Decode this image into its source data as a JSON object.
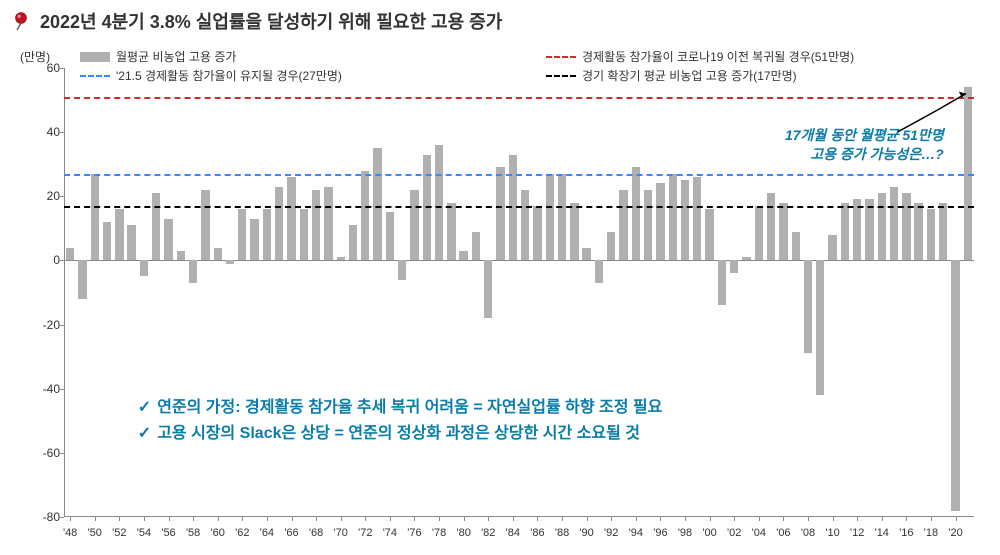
{
  "title": {
    "text": "2022년 4분기 3.8% 실업률을 달성하기 위해 필요한 고용 증가"
  },
  "chart": {
    "type": "bar",
    "y_unit_label": "(만명)",
    "title_fontsize": 18,
    "label_fontsize": 12,
    "background_color": "#ffffff",
    "bar_color": "#b0b0b0",
    "axis_color": "#888888",
    "ylim": [
      -80,
      60
    ],
    "ytick_step": 20,
    "yticks": [
      -80,
      -60,
      -40,
      -20,
      0,
      20,
      40,
      60
    ],
    "xtick_every": 2,
    "years": [
      1948,
      1949,
      1950,
      1951,
      1952,
      1953,
      1954,
      1955,
      1956,
      1957,
      1958,
      1959,
      1960,
      1961,
      1962,
      1963,
      1964,
      1965,
      1966,
      1967,
      1968,
      1969,
      1970,
      1971,
      1972,
      1973,
      1974,
      1975,
      1976,
      1977,
      1978,
      1979,
      1980,
      1981,
      1982,
      1983,
      1984,
      1985,
      1986,
      1987,
      1988,
      1989,
      1990,
      1991,
      1992,
      1993,
      1994,
      1995,
      1996,
      1997,
      1998,
      1999,
      2000,
      2001,
      2002,
      2003,
      2004,
      2005,
      2006,
      2007,
      2008,
      2009,
      2010,
      2011,
      2012,
      2013,
      2014,
      2015,
      2016,
      2017,
      2018,
      2019,
      2020,
      2021
    ],
    "values": [
      4,
      -12,
      27,
      12,
      16,
      11,
      -5,
      21,
      13,
      3,
      -7,
      22,
      4,
      -1,
      16,
      13,
      16,
      23,
      26,
      16,
      22,
      23,
      1,
      11,
      28,
      35,
      15,
      -6,
      22,
      33,
      36,
      18,
      3,
      9,
      -18,
      29,
      33,
      22,
      17,
      27,
      27,
      18,
      4,
      -7,
      9,
      22,
      29,
      22,
      24,
      27,
      25,
      26,
      16,
      -14,
      -4,
      1,
      17,
      21,
      18,
      9,
      -29,
      -42,
      8,
      18,
      19,
      19,
      21,
      23,
      21,
      18,
      16,
      18,
      -78,
      54
    ],
    "bar_width": 0.68,
    "reference_lines": [
      {
        "label": "경제활동 참가율이 코로나19 이전 복귀될 경우(51만명)",
        "value": 51,
        "color": "#d62828",
        "dash": "dashed"
      },
      {
        "label": "'21.5 경제활동 참가율이 유지될 경우(27만명)",
        "value": 27,
        "color": "#3a86ff",
        "dash": "dashed"
      },
      {
        "label": "경기 확장기 평균 비농업 고용 증가(17만명)",
        "value": 17,
        "color": "#000000",
        "dash": "dashed"
      }
    ],
    "legend_bar_label": "월평균 비농업 고용 증가",
    "annotation": {
      "line1": "17개월 동안 월평균 51만명",
      "line2": "고용 증가 가능성은…?"
    },
    "notes": {
      "line1": "연준의 가정: 경제활동 참가율 추세 복귀 어려움 = 자연실업률 하향 조정 필요",
      "line2": "고용 시장의 Slack은 상당 = 연준의 정상화 과정은 상당한 시간 소요될 것"
    }
  }
}
